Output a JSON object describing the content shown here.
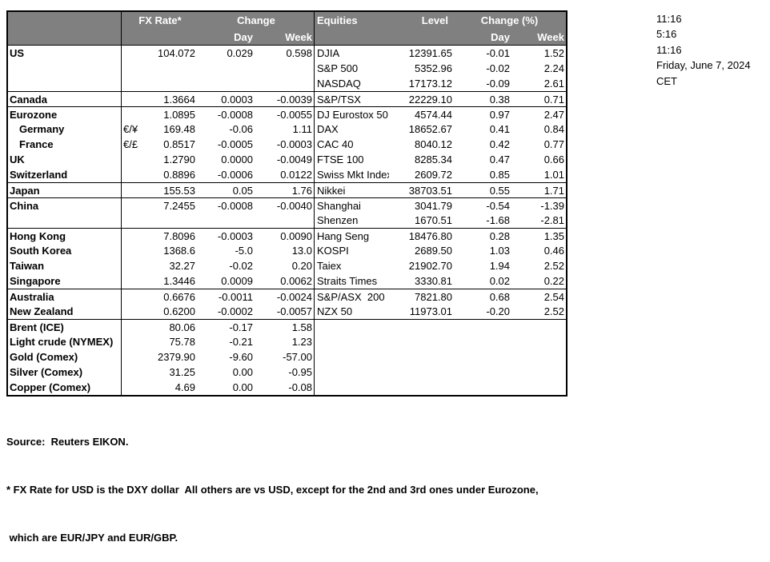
{
  "timestamps": [
    "11:16",
    "5:16",
    "11:16",
    "Friday, June 7, 2024",
    "CET"
  ],
  "table": {
    "header": {
      "fx_rate": "FX Rate*",
      "change": "Change",
      "day": "Day",
      "week": "Week",
      "equities": "Equities",
      "level": "Level",
      "change_pct": "Change (%)",
      "eq_day": "Day",
      "eq_week": "Week"
    },
    "rows": [
      {
        "name": "US",
        "indent": false,
        "pair": "",
        "rate": "104.072",
        "fx_day": "0.029",
        "fx_week": "0.598",
        "equity": "DJIA",
        "level": "12391.65",
        "eq_day": "-0.01",
        "eq_week": "1.52",
        "top_border": false
      },
      {
        "name": "",
        "indent": false,
        "pair": "",
        "rate": "",
        "fx_day": "",
        "fx_week": "",
        "equity": "S&P 500",
        "level": "5352.96",
        "eq_day": "-0.02",
        "eq_week": "2.24",
        "top_border": false
      },
      {
        "name": "",
        "indent": false,
        "pair": "",
        "rate": "",
        "fx_day": "",
        "fx_week": "",
        "equity": "NASDAQ",
        "level": "17173.12",
        "eq_day": "-0.09",
        "eq_week": "2.61",
        "top_border": false
      },
      {
        "name": "Canada",
        "indent": false,
        "pair": "",
        "rate": "1.3664",
        "fx_day": "0.0003",
        "fx_week": "-0.0039",
        "equity": "S&P/TSX",
        "level": "22229.10",
        "eq_day": "0.38",
        "eq_week": "0.71",
        "top_border": true
      },
      {
        "name": "Eurozone",
        "indent": false,
        "pair": "",
        "rate": "1.0895",
        "fx_day": "-0.0008",
        "fx_week": "-0.0055",
        "equity": "DJ Eurostox 50",
        "level": "4574.44",
        "eq_day": "0.97",
        "eq_week": "2.47",
        "top_border": true
      },
      {
        "name": "Germany",
        "indent": true,
        "pair": "€/¥",
        "rate": "169.48",
        "fx_day": "-0.06",
        "fx_week": "1.11",
        "equity": "DAX",
        "level": "18652.67",
        "eq_day": "0.41",
        "eq_week": "0.84",
        "top_border": false
      },
      {
        "name": "France",
        "indent": true,
        "pair": "€/£",
        "rate": "0.8517",
        "fx_day": "-0.0005",
        "fx_week": "-0.0003",
        "equity": "CAC 40",
        "level": "8040.12",
        "eq_day": "0.42",
        "eq_week": "0.77",
        "top_border": false
      },
      {
        "name": "UK",
        "indent": false,
        "pair": "",
        "rate": "1.2790",
        "fx_day": "0.0000",
        "fx_week": "-0.0049",
        "equity": "FTSE 100",
        "level": "8285.34",
        "eq_day": "0.47",
        "eq_week": "0.66",
        "top_border": false
      },
      {
        "name": "Switzerland",
        "indent": false,
        "pair": "",
        "rate": "0.8896",
        "fx_day": "-0.0006",
        "fx_week": "0.0122",
        "equity": "Swiss Mkt Index",
        "level": "2609.72",
        "eq_day": "0.85",
        "eq_week": "1.01",
        "top_border": false
      },
      {
        "name": "Japan",
        "indent": false,
        "pair": "",
        "rate": "155.53",
        "fx_day": "0.05",
        "fx_week": "1.76",
        "equity": "Nikkei",
        "level": "38703.51",
        "eq_day": "0.55",
        "eq_week": "1.71",
        "top_border": true
      },
      {
        "name": "China",
        "indent": false,
        "pair": "",
        "rate": "7.2455",
        "fx_day": "-0.0008",
        "fx_week": "-0.0040",
        "equity": "Shanghai",
        "level": "3041.79",
        "eq_day": "-0.54",
        "eq_week": "-1.39",
        "top_border": true
      },
      {
        "name": "",
        "indent": false,
        "pair": "",
        "rate": "",
        "fx_day": "",
        "fx_week": "",
        "equity": "Shenzen",
        "level": "1670.51",
        "eq_day": "-1.68",
        "eq_week": "-2.81",
        "top_border": false
      },
      {
        "name": "Hong Kong",
        "indent": false,
        "pair": "",
        "rate": "7.8096",
        "fx_day": "-0.0003",
        "fx_week": "0.0090",
        "equity": "Hang Seng",
        "level": "18476.80",
        "eq_day": "0.28",
        "eq_week": "1.35",
        "top_border": true
      },
      {
        "name": "South Korea",
        "indent": false,
        "pair": "",
        "rate": "1368.6",
        "fx_day": "-5.0",
        "fx_week": "13.0",
        "equity": "KOSPI",
        "level": "2689.50",
        "eq_day": "1.03",
        "eq_week": "0.46",
        "top_border": false
      },
      {
        "name": "Taiwan",
        "indent": false,
        "pair": "",
        "rate": "32.27",
        "fx_day": "-0.02",
        "fx_week": "0.20",
        "equity": "Taiex",
        "level": "21902.70",
        "eq_day": "1.94",
        "eq_week": "2.52",
        "top_border": false
      },
      {
        "name": "Singapore",
        "indent": false,
        "pair": "",
        "rate": "1.3446",
        "fx_day": "0.0009",
        "fx_week": "0.0062",
        "equity": "Straits Times",
        "level": "3330.81",
        "eq_day": "0.02",
        "eq_week": "0.22",
        "top_border": false
      },
      {
        "name": "Australia",
        "indent": false,
        "pair": "",
        "rate": "0.6676",
        "fx_day": "-0.0011",
        "fx_week": "-0.0024",
        "equity": "S&P/ASX  200",
        "level": "7821.80",
        "eq_day": "0.68",
        "eq_week": "2.54",
        "top_border": true
      },
      {
        "name": "New Zealand",
        "indent": false,
        "pair": "",
        "rate": "0.6200",
        "fx_day": "-0.0002",
        "fx_week": "-0.0057",
        "equity": "NZX 50",
        "level": "11973.01",
        "eq_day": "-0.20",
        "eq_week": "2.52",
        "top_border": false
      },
      {
        "name": "Brent (ICE)",
        "indent": false,
        "pair": "",
        "rate": "80.06",
        "fx_day": "-0.17",
        "fx_week": "1.58",
        "equity": "",
        "level": "",
        "eq_day": "",
        "eq_week": "",
        "top_border": true
      },
      {
        "name": "Light crude (NYMEX)",
        "indent": false,
        "pair": "",
        "rate": "75.78",
        "fx_day": "-0.21",
        "fx_week": "1.23",
        "equity": "",
        "level": "",
        "eq_day": "",
        "eq_week": "",
        "top_border": false
      },
      {
        "name": "Gold (Comex)",
        "indent": false,
        "pair": "",
        "rate": "2379.90",
        "fx_day": "-9.60",
        "fx_week": "-57.00",
        "equity": "",
        "level": "",
        "eq_day": "",
        "eq_week": "",
        "top_border": false
      },
      {
        "name": "Silver (Comex)",
        "indent": false,
        "pair": "",
        "rate": "31.25",
        "fx_day": "0.00",
        "fx_week": "-0.95",
        "equity": "",
        "level": "",
        "eq_day": "",
        "eq_week": "",
        "top_border": false
      },
      {
        "name": "Copper (Comex)",
        "indent": false,
        "pair": "",
        "rate": "4.69",
        "fx_day": "0.00",
        "fx_week": "-0.08",
        "equity": "",
        "level": "",
        "eq_day": "",
        "eq_week": "",
        "top_border": false
      }
    ]
  },
  "footer": {
    "source": "Source:  Reuters EIKON.",
    "note1": "* FX Rate for USD is the DXY dollar  All others are vs USD, except for the 2nd and 3rd ones under Eurozone,",
    "note2": " which are EUR/JPY and EUR/GBP."
  },
  "colors": {
    "header_bg": "#808080",
    "header_text": "#ffffff",
    "border": "#000000"
  }
}
